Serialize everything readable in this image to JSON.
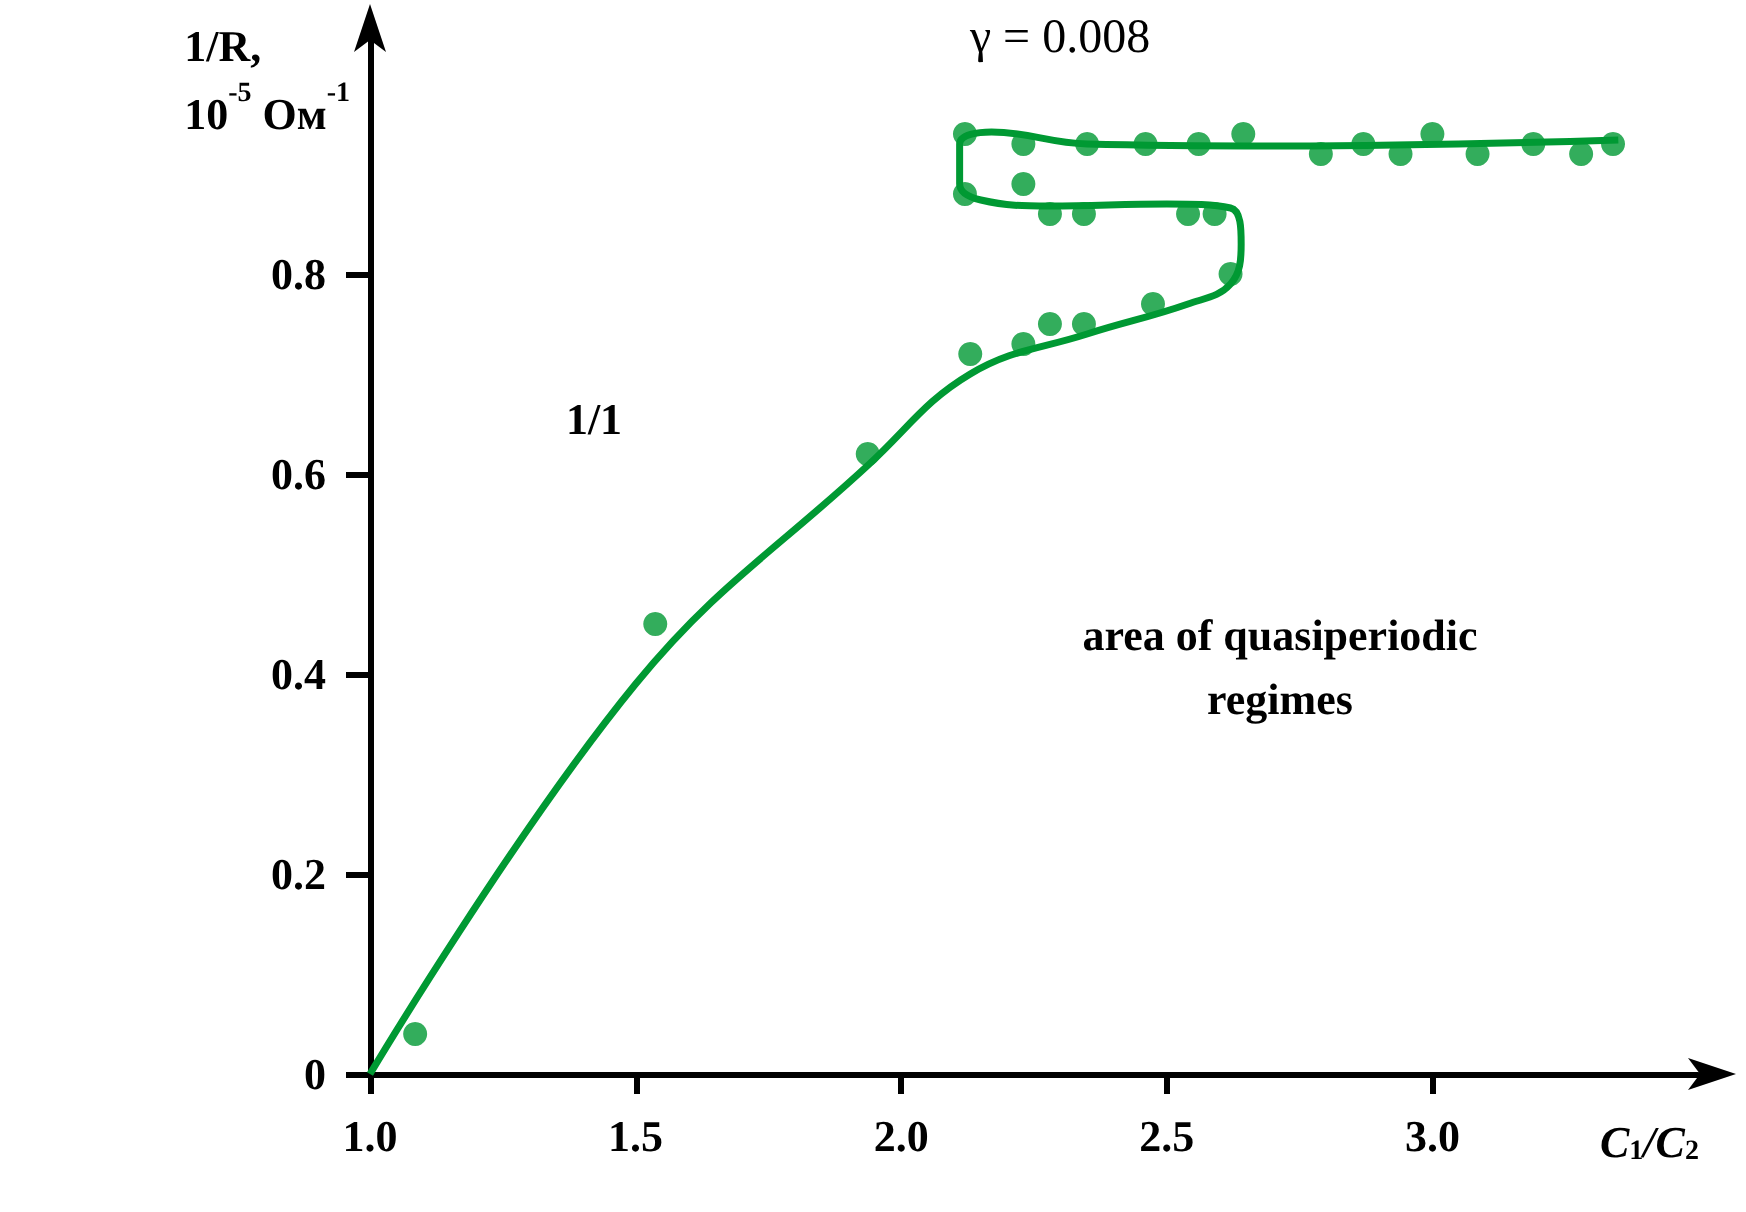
{
  "chart_data": {
    "type": "scatter",
    "title": "γ = 0.008",
    "xlabel": "C$_{1}$/C$_{2}$",
    "ylabel": "1/R,\n10$^{-5}$ Ом$^{-1}$",
    "annotations": [
      "1/1",
      "area of quasiperiodic regimes"
    ],
    "xlim": [
      1.0,
      3.5
    ],
    "ylim": [
      0,
      1.05
    ],
    "xticks": [
      {
        "value": 1,
        "label": "1.0"
      },
      1.5,
      {
        "value": 2,
        "label": "2.0"
      },
      2.5,
      {
        "value": 3,
        "label": "3.0"
      }
    ],
    "yticks": [
      0,
      0.2,
      0.4,
      0.6,
      0.8
    ],
    "grid": false,
    "marker": "circle",
    "series": [
      {
        "color": "#009933",
        "x": [
          1.085,
          1.537,
          1.937,
          2.13,
          2.23,
          2.28,
          2.344,
          2.474,
          2.62,
          2.12,
          2.23,
          2.28,
          2.344,
          2.54,
          2.59,
          2.12,
          2.23,
          2.35,
          2.46,
          2.56,
          2.644,
          2.79,
          2.87,
          2.94,
          3.0,
          3.085,
          3.19,
          3.28,
          3.34
        ],
        "values": [
          0.04,
          0.45,
          0.62,
          0.72,
          0.73,
          0.75,
          0.75,
          0.77,
          0.8,
          0.88,
          0.89,
          0.86,
          0.86,
          0.86,
          0.86,
          0.94,
          0.93,
          0.93,
          0.93,
          0.93,
          0.94,
          0.92,
          0.93,
          0.92,
          0.94,
          0.92,
          0.93,
          0.92,
          0.93
        ]
      },
      {
        "type": "line",
        "color": "#009933",
        "marker": "none",
        "x": [
          1.0,
          1.5,
          1.94,
          2.13,
          2.35,
          2.54,
          2.62,
          2.64,
          2.62,
          2.5,
          2.28,
          2.15,
          2.11,
          2.11,
          2.17,
          2.35,
          2.72,
          3.35
        ],
        "values": [
          0,
          0.39,
          0.61,
          0.7,
          0.74,
          0.77,
          0.79,
          0.83,
          0.866,
          0.87,
          0.868,
          0.874,
          0.89,
          0.93,
          0.942,
          0.93,
          0.928,
          0.934
        ]
      }
    ]
  }
}
